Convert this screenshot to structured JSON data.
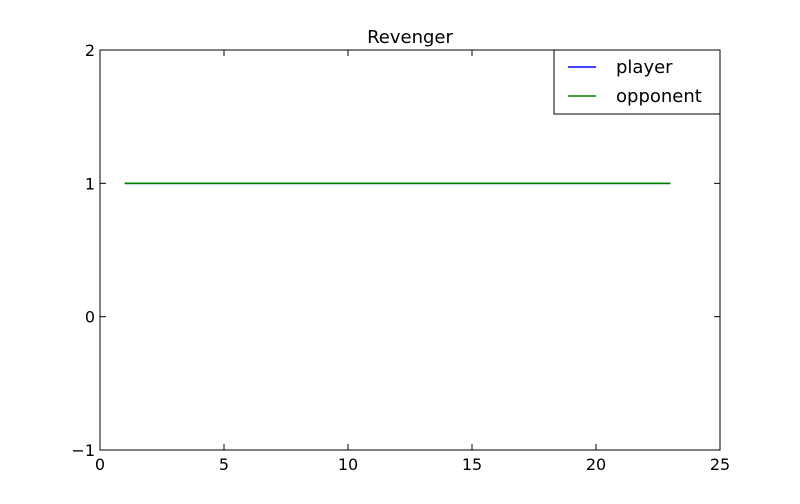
{
  "chart_data": {
    "type": "line",
    "title": "Revenger",
    "xlabel": "",
    "ylabel": "",
    "xlim": [
      0,
      25
    ],
    "ylim": [
      -1,
      2
    ],
    "xticks": [
      0,
      5,
      10,
      15,
      20,
      25
    ],
    "yticks": [
      -1,
      0,
      1,
      2
    ],
    "xtick_labels": [
      "0",
      "5",
      "10",
      "15",
      "20",
      "25"
    ],
    "ytick_labels": [
      "−1",
      "0",
      "1",
      "2"
    ],
    "grid": false,
    "legend_position": "top-right",
    "x": [
      1,
      2,
      3,
      4,
      5,
      6,
      7,
      8,
      9,
      10,
      11,
      12,
      13,
      14,
      15,
      16,
      17,
      18,
      19,
      20,
      21,
      22,
      23
    ],
    "series": [
      {
        "name": "player",
        "color": "#0000ff",
        "values": [
          1,
          1,
          1,
          1,
          1,
          1,
          1,
          1,
          1,
          1,
          1,
          1,
          1,
          1,
          1,
          1,
          1,
          1,
          1,
          1,
          1,
          1,
          1
        ]
      },
      {
        "name": "opponent",
        "color": "#008000",
        "values": [
          1,
          1,
          1,
          1,
          1,
          1,
          1,
          1,
          1,
          1,
          1,
          1,
          1,
          1,
          1,
          1,
          1,
          1,
          1,
          1,
          1,
          1,
          1
        ]
      }
    ]
  }
}
